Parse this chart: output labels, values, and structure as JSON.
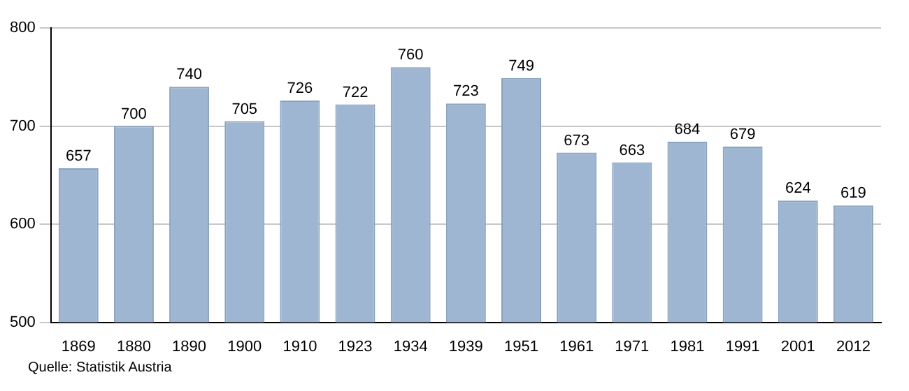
{
  "chart_data": {
    "type": "bar",
    "categories": [
      "1869",
      "1880",
      "1890",
      "1900",
      "1910",
      "1923",
      "1934",
      "1939",
      "1951",
      "1961",
      "1971",
      "1981",
      "1991",
      "2001",
      "2012"
    ],
    "values": [
      657,
      700,
      740,
      705,
      726,
      722,
      760,
      723,
      749,
      673,
      663,
      684,
      679,
      624,
      619
    ],
    "color": "#9fb6d2",
    "ylim": [
      500,
      800
    ],
    "yticks": [
      500,
      600,
      700,
      800
    ],
    "grid": "y",
    "data_labels": true,
    "legend": false,
    "annotations": [
      "Quelle: Statistik Austria"
    ]
  }
}
